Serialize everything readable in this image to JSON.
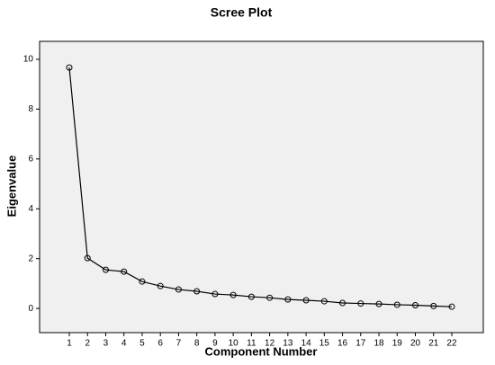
{
  "chart_data": {
    "type": "line",
    "title": "Scree Plot",
    "xlabel": "Component Number",
    "ylabel": "Eigenvalue",
    "x": [
      1,
      2,
      3,
      4,
      5,
      6,
      7,
      8,
      9,
      10,
      11,
      12,
      13,
      14,
      15,
      16,
      17,
      18,
      19,
      20,
      21,
      22
    ],
    "values": [
      9.67,
      2.02,
      1.55,
      1.48,
      1.08,
      0.9,
      0.76,
      0.69,
      0.58,
      0.54,
      0.47,
      0.43,
      0.36,
      0.33,
      0.29,
      0.22,
      0.2,
      0.18,
      0.15,
      0.13,
      0.1,
      0.07
    ],
    "color": "#000000",
    "xlim": [
      -0.63,
      23.73
    ],
    "xticks": [
      1,
      2,
      3,
      4,
      5,
      6,
      7,
      8,
      9,
      10,
      11,
      12,
      13,
      14,
      15,
      16,
      17,
      18,
      19,
      20,
      21,
      22
    ],
    "ylim": [
      -0.97,
      10.72
    ],
    "yticks": [
      0,
      2,
      4,
      6,
      8,
      10
    ],
    "background": "#f0f0f0"
  }
}
